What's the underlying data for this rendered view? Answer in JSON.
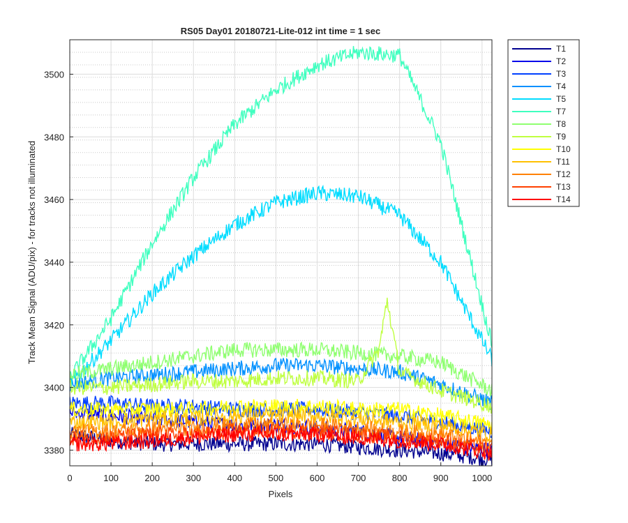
{
  "chart_data": {
    "type": "line",
    "title": "RS05 Day01 20180721-Lite-012 int time = 1 sec",
    "xlabel": "Pixels",
    "ylabel": "Track Mean Signal (ADU/pix) - for tracks not illuminated",
    "xlim": [
      0,
      1024
    ],
    "ylim": [
      3375,
      3511
    ],
    "xticks": [
      0,
      100,
      200,
      300,
      400,
      500,
      600,
      700,
      800,
      900,
      1000
    ],
    "yticks": [
      3380,
      3400,
      3420,
      3440,
      3460,
      3480,
      3500
    ],
    "grid": true,
    "minor_grid": true,
    "legend_position": "outside-top-right",
    "noise_note_omitted": true,
    "series": [
      {
        "name": "T1",
        "color": "#00008f",
        "x": [
          0,
          100,
          200,
          300,
          400,
          500,
          600,
          700,
          800,
          900,
          1024
        ],
        "y": [
          3385,
          3383,
          3382,
          3382,
          3382,
          3382,
          3382,
          3381,
          3380,
          3379,
          3377
        ]
      },
      {
        "name": "T2",
        "color": "#0000ea",
        "x": [
          0,
          100,
          200,
          300,
          400,
          500,
          600,
          700,
          800,
          900,
          1024
        ],
        "y": [
          3392,
          3391,
          3390,
          3389,
          3388,
          3388,
          3387,
          3386,
          3384,
          3382,
          3380
        ]
      },
      {
        "name": "T3",
        "color": "#0040ff",
        "x": [
          0,
          100,
          200,
          300,
          400,
          500,
          600,
          700,
          800,
          900,
          1024
        ],
        "y": [
          3395,
          3395,
          3394,
          3394,
          3393,
          3393,
          3393,
          3392,
          3391,
          3389,
          3386
        ]
      },
      {
        "name": "T4",
        "color": "#0090ff",
        "x": [
          0,
          100,
          200,
          300,
          400,
          500,
          600,
          700,
          800,
          900,
          1024
        ],
        "y": [
          3401,
          3403,
          3404,
          3405,
          3406,
          3407,
          3407,
          3406,
          3405,
          3401,
          3395
        ]
      },
      {
        "name": "T5",
        "color": "#00dcff",
        "x": [
          0,
          100,
          200,
          300,
          400,
          500,
          600,
          700,
          800,
          900,
          1024
        ],
        "y": [
          3401,
          3415,
          3430,
          3442,
          3452,
          3459,
          3462,
          3461,
          3455,
          3440,
          3409
        ]
      },
      {
        "name": "T7",
        "color": "#3fffbf",
        "x": [
          0,
          100,
          200,
          300,
          400,
          500,
          600,
          700,
          800,
          900,
          1024
        ],
        "y": [
          3403,
          3422,
          3446,
          3467,
          3484,
          3495,
          3503,
          3507,
          3506,
          3478,
          3414
        ]
      },
      {
        "name": "T8",
        "color": "#8fff70",
        "x": [
          0,
          100,
          200,
          300,
          400,
          500,
          600,
          700,
          800,
          900,
          1024
        ],
        "y": [
          3404,
          3406,
          3408,
          3410,
          3412,
          3412,
          3412,
          3411,
          3410,
          3408,
          3399
        ]
      },
      {
        "name": "T9",
        "color": "#bfff40",
        "x": [
          0,
          100,
          200,
          300,
          400,
          500,
          600,
          700,
          750,
          770,
          800,
          900,
          1024
        ],
        "y": [
          3400,
          3400,
          3401,
          3402,
          3402,
          3403,
          3403,
          3402,
          3412,
          3428,
          3405,
          3399,
          3394
        ]
      },
      {
        "name": "T10",
        "color": "#ffff00",
        "x": [
          0,
          100,
          200,
          300,
          400,
          500,
          600,
          700,
          800,
          900,
          1024
        ],
        "y": [
          3393,
          3393,
          3393,
          3393,
          3394,
          3394,
          3394,
          3393,
          3393,
          3391,
          3388
        ]
      },
      {
        "name": "T11",
        "color": "#ffc000",
        "x": [
          0,
          100,
          200,
          300,
          400,
          500,
          600,
          700,
          800,
          900,
          1024
        ],
        "y": [
          3389,
          3389,
          3390,
          3390,
          3391,
          3391,
          3391,
          3390,
          3389,
          3388,
          3385
        ]
      },
      {
        "name": "T12",
        "color": "#ff8000",
        "x": [
          0,
          100,
          200,
          300,
          400,
          500,
          600,
          700,
          800,
          900,
          1024
        ],
        "y": [
          3386,
          3386,
          3387,
          3387,
          3388,
          3388,
          3388,
          3387,
          3386,
          3385,
          3382
        ]
      },
      {
        "name": "T13",
        "color": "#ff4000",
        "x": [
          0,
          100,
          200,
          300,
          400,
          500,
          600,
          700,
          800,
          900,
          1024
        ],
        "y": [
          3384,
          3384,
          3385,
          3385,
          3386,
          3386,
          3386,
          3385,
          3384,
          3383,
          3380
        ]
      },
      {
        "name": "T14",
        "color": "#ff0000",
        "x": [
          0,
          100,
          200,
          300,
          400,
          500,
          600,
          700,
          800,
          900,
          1024
        ],
        "y": [
          3382,
          3382,
          3383,
          3384,
          3385,
          3385,
          3385,
          3384,
          3383,
          3382,
          3379
        ]
      }
    ]
  }
}
